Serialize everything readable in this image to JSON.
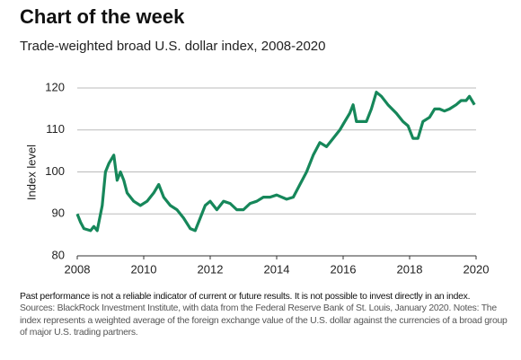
{
  "chart_data": {
    "type": "line",
    "title": "Chart of the week",
    "subtitle": "Trade-weighted broad U.S. dollar index, 2008-2020",
    "y_label": "Index level",
    "disclaimer": "Past performance is not a reliable indicator of current or future results. It is not possible to invest directly in an index.",
    "source": "Sources: BlackRock Investment Institute, with data from the Federal Reserve Bank of St. Louis, January 2020. Notes: The index represents a weighted average of the foreign exchange value of the U.S. dollar against the currencies of a broad group of major U.S. trading partners.",
    "xlim": [
      2008,
      2020
    ],
    "xticks": [
      2008,
      2010,
      2012,
      2014,
      2016,
      2018,
      2020
    ],
    "ylim": [
      80,
      120
    ],
    "yticks": [
      80,
      90,
      100,
      110,
      120
    ],
    "grid": true,
    "series": [
      {
        "color": "#16875a",
        "x": [
          2008.0,
          2008.1,
          2008.2,
          2008.4,
          2008.5,
          2008.6,
          2008.75,
          2008.85,
          2008.95,
          2009.1,
          2009.2,
          2009.3,
          2009.4,
          2009.5,
          2009.7,
          2009.9,
          2010.1,
          2010.3,
          2010.45,
          2010.6,
          2010.8,
          2011.0,
          2011.2,
          2011.4,
          2011.55,
          2011.7,
          2011.85,
          2012.0,
          2012.2,
          2012.4,
          2012.6,
          2012.8,
          2013.0,
          2013.2,
          2013.4,
          2013.6,
          2013.8,
          2014.0,
          2014.3,
          2014.5,
          2014.7,
          2014.9,
          2015.1,
          2015.3,
          2015.5,
          2015.7,
          2015.9,
          2016.05,
          2016.2,
          2016.3,
          2016.4,
          2016.55,
          2016.7,
          2016.85,
          2017.0,
          2017.15,
          2017.35,
          2017.6,
          2017.8,
          2017.95,
          2018.1,
          2018.25,
          2018.4,
          2018.6,
          2018.75,
          2018.9,
          2019.05,
          2019.2,
          2019.4,
          2019.55,
          2019.7,
          2019.8,
          2019.95
        ],
        "values": [
          90,
          88,
          86.5,
          86,
          87,
          86,
          92,
          100,
          102,
          104,
          98,
          100,
          98,
          95,
          93,
          92,
          93,
          95,
          97,
          94,
          92,
          91,
          89,
          86.5,
          86,
          89,
          92,
          93,
          91,
          93,
          92.5,
          91,
          91,
          92.5,
          93,
          94,
          94,
          94.5,
          93.5,
          94,
          97,
          100,
          104,
          107,
          106,
          108,
          110,
          112,
          114,
          116,
          112,
          112,
          112,
          115,
          119,
          118,
          116,
          114,
          112,
          111,
          108,
          108,
          112,
          113,
          115,
          115,
          114.5,
          115,
          116,
          117,
          117,
          118,
          116
        ]
      }
    ]
  }
}
